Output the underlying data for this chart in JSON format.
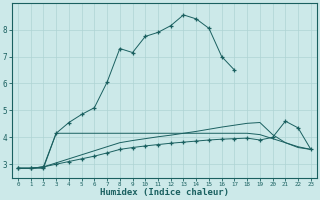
{
  "xlabel": "Humidex (Indice chaleur)",
  "background_color": "#cce9e9",
  "grid_color": "#afd4d4",
  "line_color": "#1a6060",
  "xlim": [
    -0.5,
    23.5
  ],
  "ylim": [
    2.5,
    9.0
  ],
  "yticks": [
    3,
    4,
    5,
    6,
    7,
    8
  ],
  "xticks": [
    0,
    1,
    2,
    3,
    4,
    5,
    6,
    7,
    8,
    9,
    10,
    11,
    12,
    13,
    14,
    15,
    16,
    17,
    18,
    19,
    20,
    21,
    22,
    23
  ],
  "line1_x": [
    0,
    1,
    2,
    3,
    4,
    5,
    6,
    7,
    8,
    9,
    10,
    11,
    12,
    13,
    14,
    15,
    16,
    17
  ],
  "line1_y": [
    2.85,
    2.85,
    2.85,
    4.15,
    4.55,
    4.85,
    5.1,
    6.05,
    7.3,
    7.15,
    7.75,
    7.9,
    8.15,
    8.55,
    8.4,
    8.05,
    7.0,
    6.5
  ],
  "line2_x": [
    0,
    1,
    2,
    3,
    4,
    5,
    6,
    7,
    8,
    9,
    10,
    11,
    12,
    13,
    14,
    15,
    16,
    17,
    18,
    19,
    20,
    21,
    22,
    23
  ],
  "line2_y": [
    2.85,
    2.85,
    2.9,
    4.15,
    4.15,
    4.15,
    4.15,
    4.15,
    4.15,
    4.15,
    4.15,
    4.15,
    4.15,
    4.15,
    4.15,
    4.15,
    4.15,
    4.15,
    4.15,
    4.1,
    3.95,
    3.8,
    3.65,
    3.55
  ],
  "line3_x": [
    0,
    1,
    2,
    3,
    4,
    5,
    6,
    7,
    8,
    9,
    10,
    11,
    12,
    13,
    14,
    15,
    16,
    17,
    18,
    19,
    20,
    21,
    22,
    23
  ],
  "line3_y": [
    2.85,
    2.85,
    2.9,
    3.05,
    3.2,
    3.35,
    3.5,
    3.65,
    3.8,
    3.88,
    3.95,
    4.02,
    4.08,
    4.15,
    4.22,
    4.3,
    4.38,
    4.45,
    4.52,
    4.55,
    4.1,
    3.8,
    3.62,
    3.55
  ],
  "line4_x": [
    0,
    1,
    2,
    3,
    4,
    5,
    6,
    7,
    8,
    9,
    10,
    11,
    12,
    13,
    14,
    15,
    16,
    17,
    18,
    19,
    20,
    21,
    22,
    23
  ],
  "line4_y": [
    2.85,
    2.85,
    2.9,
    3.0,
    3.1,
    3.2,
    3.3,
    3.42,
    3.55,
    3.62,
    3.68,
    3.73,
    3.78,
    3.82,
    3.86,
    3.9,
    3.93,
    3.95,
    3.97,
    3.9,
    4.0,
    4.6,
    4.35,
    3.55
  ]
}
